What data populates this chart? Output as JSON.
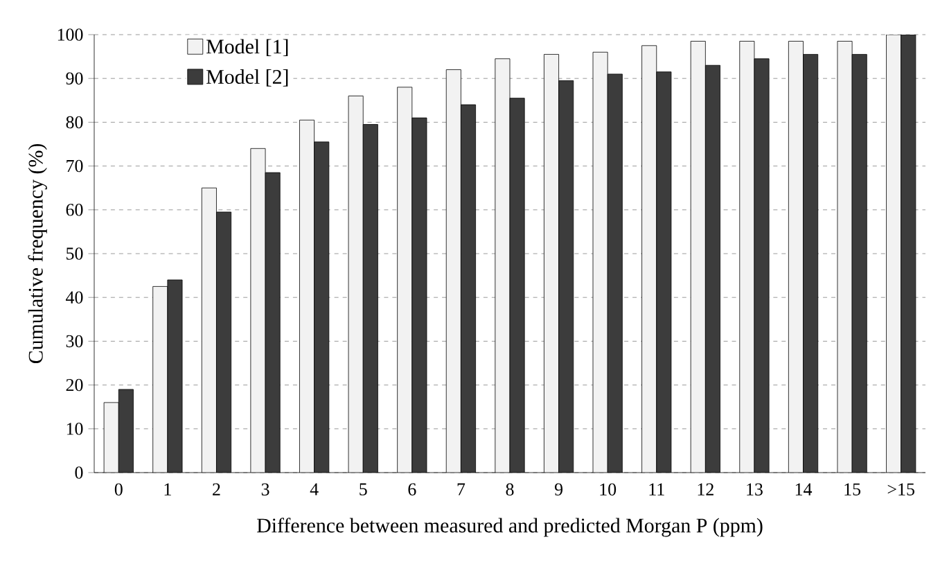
{
  "chart_data": {
    "type": "bar",
    "xlabel": "Difference between measured and predicted Morgan P (ppm)",
    "ylabel": "Cumulative frequency (%)",
    "categories": [
      "0",
      "1",
      "2",
      "3",
      "4",
      "5",
      "6",
      "7",
      "8",
      "9",
      "10",
      "11",
      "12",
      "13",
      "14",
      "15",
      ">15"
    ],
    "series": [
      {
        "name": "Model [1]",
        "color": "#f2f2f2",
        "values": [
          16,
          42.5,
          65,
          74,
          80.5,
          86,
          88,
          92,
          94.5,
          95.5,
          96,
          97.5,
          98.5,
          98.5,
          98.5,
          98.5,
          100
        ]
      },
      {
        "name": "Model [2]",
        "color": "#3c3c3c",
        "values": [
          19,
          44,
          59.5,
          68.5,
          75.5,
          79.5,
          81,
          84,
          85.5,
          89.5,
          91,
          91.5,
          93,
          94.5,
          95.5,
          95.5,
          100
        ]
      }
    ],
    "ylim": [
      0,
      100
    ],
    "yticks": [
      0,
      10,
      20,
      30,
      40,
      50,
      60,
      70,
      80,
      90,
      100
    ],
    "grid": "y",
    "legend": "top left"
  }
}
